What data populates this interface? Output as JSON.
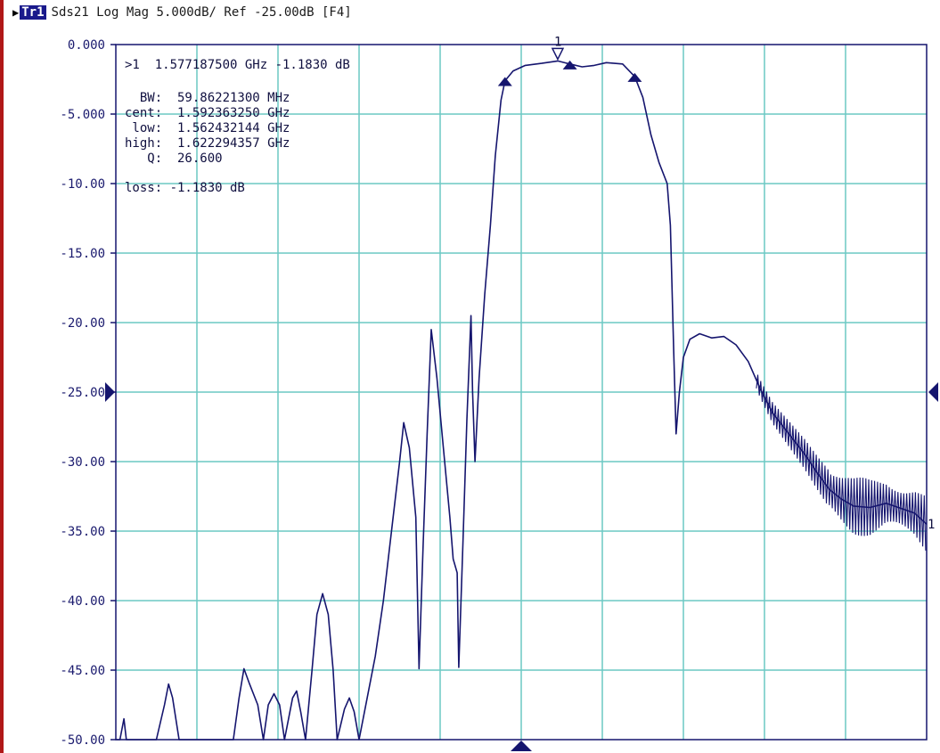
{
  "header": {
    "trace_label": "Tr1",
    "description": "Sds21 Log Mag 5.000dB/ Ref -25.00dB [F4]"
  },
  "colors": {
    "trace": "#15156e",
    "grid": "#6cc9c4",
    "axis_text": "#1a1a6e",
    "frame": "#15156e",
    "badge_bg": "#1a1a8c",
    "left_rule": "#b01818"
  },
  "marker_readout": {
    "active": ">1  1.577187500 GHz -1.1830 dB",
    "bw": "  BW:  59.86221300 MHz",
    "cent": "cent:  1.592363250 GHz",
    "low": " low:  1.562432144 GHz",
    "high": "high:  1.622294357 GHz",
    "q": "   Q:  26.600",
    "loss": "loss: -1.1830 dB"
  },
  "marker_number": "1",
  "trace_end_label": "1",
  "chart_data": {
    "type": "line",
    "title": "Sds21 Log Mag 5.000dB/ Ref -25.00dB [F4]",
    "ylabel": "",
    "xlabel": "",
    "ylim": [
      -50,
      0
    ],
    "xlim": [
      0,
      10
    ],
    "x_unit": "divisions",
    "y_ticks": [
      0,
      -5,
      -10,
      -15,
      -20,
      -25,
      -30,
      -35,
      -40,
      -45,
      -50
    ],
    "y_tick_labels": [
      "0.000",
      "-5.000",
      "-10.00",
      "-15.00",
      "-20.00",
      "-25.00",
      "-30.00",
      "-35.00",
      "-40.00",
      "-45.00",
      "-50.00"
    ],
    "reference_level": -25,
    "grid": true,
    "series": [
      {
        "values": [
          [
            0.0,
            -50.0
          ],
          [
            0.05,
            -50.0
          ],
          [
            0.1,
            -48.5
          ],
          [
            0.13,
            -50.0
          ],
          [
            0.5,
            -50.0
          ],
          [
            0.6,
            -47.5
          ],
          [
            0.65,
            -46.0
          ],
          [
            0.7,
            -47.0
          ],
          [
            0.78,
            -50.0
          ],
          [
            1.45,
            -50.0
          ],
          [
            1.52,
            -47.0
          ],
          [
            1.58,
            -44.9
          ],
          [
            1.65,
            -46.0
          ],
          [
            1.75,
            -47.5
          ],
          [
            1.82,
            -50.0
          ],
          [
            1.88,
            -47.5
          ],
          [
            1.95,
            -46.7
          ],
          [
            2.02,
            -47.5
          ],
          [
            2.08,
            -50.0
          ],
          [
            2.18,
            -47.0
          ],
          [
            2.23,
            -46.5
          ],
          [
            2.28,
            -48.0
          ],
          [
            2.34,
            -50.0
          ],
          [
            2.42,
            -45.0
          ],
          [
            2.48,
            -41.0
          ],
          [
            2.55,
            -39.5
          ],
          [
            2.62,
            -41.0
          ],
          [
            2.68,
            -45.0
          ],
          [
            2.73,
            -50.0
          ],
          [
            2.82,
            -47.8
          ],
          [
            2.88,
            -47.0
          ],
          [
            2.94,
            -48.0
          ],
          [
            3.0,
            -50.0
          ],
          [
            3.1,
            -47.0
          ],
          [
            3.2,
            -44.0
          ],
          [
            3.3,
            -40.0
          ],
          [
            3.4,
            -35.0
          ],
          [
            3.5,
            -30.0
          ],
          [
            3.55,
            -27.2
          ],
          [
            3.62,
            -29.0
          ],
          [
            3.7,
            -34.0
          ],
          [
            3.74,
            -44.9
          ],
          [
            3.79,
            -36.0
          ],
          [
            3.84,
            -28.0
          ],
          [
            3.89,
            -20.5
          ],
          [
            3.96,
            -24.0
          ],
          [
            4.04,
            -29.0
          ],
          [
            4.12,
            -34.0
          ],
          [
            4.16,
            -37.0
          ],
          [
            4.21,
            -38.0
          ],
          [
            4.23,
            -44.8
          ],
          [
            4.28,
            -36.0
          ],
          [
            4.33,
            -27.0
          ],
          [
            4.38,
            -19.5
          ],
          [
            4.4,
            -25.0
          ],
          [
            4.43,
            -30.0
          ],
          [
            4.48,
            -24.0
          ],
          [
            4.55,
            -18.0
          ],
          [
            4.62,
            -13.0
          ],
          [
            4.68,
            -8.0
          ],
          [
            4.75,
            -4.0
          ],
          [
            4.8,
            -2.6
          ],
          [
            4.9,
            -1.9
          ],
          [
            5.05,
            -1.5
          ],
          [
            5.25,
            -1.35
          ],
          [
            5.45,
            -1.18
          ],
          [
            5.6,
            -1.4
          ],
          [
            5.75,
            -1.6
          ],
          [
            5.9,
            -1.5
          ],
          [
            6.05,
            -1.3
          ],
          [
            6.25,
            -1.4
          ],
          [
            6.4,
            -2.3
          ],
          [
            6.5,
            -3.8
          ],
          [
            6.6,
            -6.5
          ],
          [
            6.7,
            -8.5
          ],
          [
            6.8,
            -10.0
          ],
          [
            6.84,
            -13.0
          ],
          [
            6.88,
            -22.0
          ],
          [
            6.91,
            -28.0
          ],
          [
            6.95,
            -25.0
          ],
          [
            7.0,
            -22.5
          ],
          [
            7.08,
            -21.2
          ],
          [
            7.2,
            -20.8
          ],
          [
            7.35,
            -21.1
          ],
          [
            7.5,
            -21.0
          ],
          [
            7.65,
            -21.6
          ],
          [
            7.8,
            -22.8
          ],
          [
            7.95,
            -24.8
          ],
          [
            8.1,
            -26.5
          ],
          [
            8.3,
            -28.0
          ],
          [
            8.5,
            -29.5
          ],
          [
            8.65,
            -30.8
          ],
          [
            8.8,
            -32.0
          ],
          [
            8.95,
            -32.7
          ],
          [
            9.1,
            -33.2
          ],
          [
            9.3,
            -33.3
          ],
          [
            9.5,
            -33.0
          ],
          [
            9.7,
            -33.4
          ],
          [
            9.85,
            -33.7
          ],
          [
            10.0,
            -34.5
          ]
        ]
      }
    ],
    "markers": [
      {
        "id": "1",
        "x": 5.45,
        "y": -1.18,
        "kind": "active"
      },
      {
        "x": 4.8,
        "y": -2.6,
        "kind": "low"
      },
      {
        "x": 5.6,
        "y": -1.4,
        "kind": "center"
      },
      {
        "x": 6.4,
        "y": -2.3,
        "kind": "high"
      }
    ]
  }
}
